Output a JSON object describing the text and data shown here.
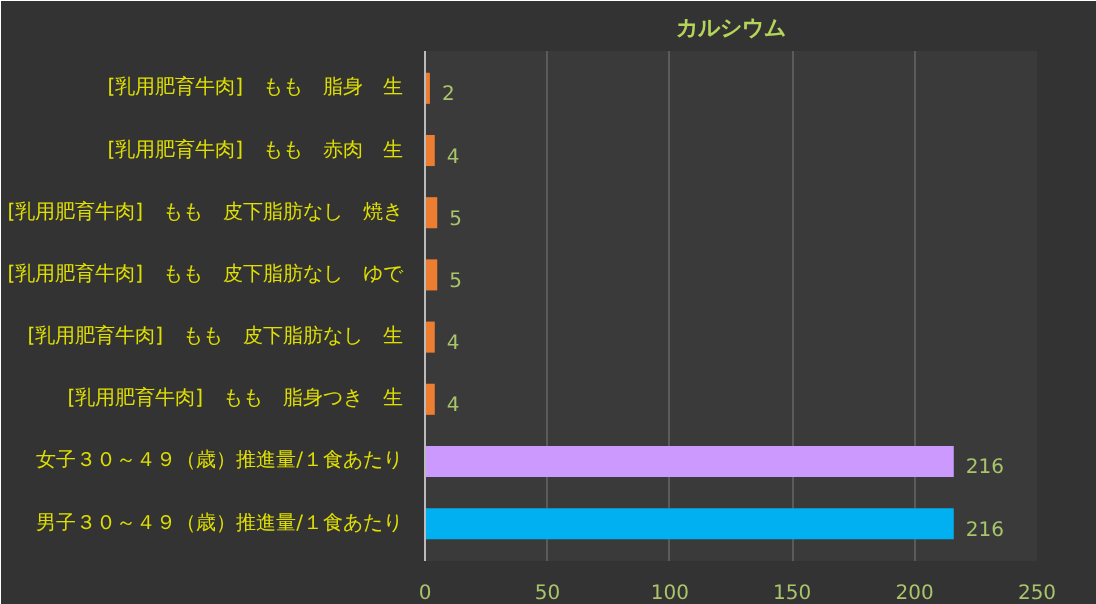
{
  "chart_data": {
    "type": "bar",
    "orientation": "horizontal",
    "title": "カルシウム",
    "categories": [
      "[乳用肥育牛肉]　もも　脂身　生",
      "[乳用肥育牛肉]　もも　赤肉　生",
      "[乳用肥育牛肉]　もも　皮下脂肪なし　焼き",
      "[乳用肥育牛肉]　もも　皮下脂肪なし　ゆで",
      "[乳用肥育牛肉]　もも　皮下脂肪なし　生",
      "[乳用肥育牛肉]　もも　脂身つき　生",
      "女子３０～４９（歳）推進量/１食あたり",
      "男子３０～４９（歳）推進量/１食あたり"
    ],
    "values": [
      2,
      4,
      5,
      5,
      4,
      4,
      216,
      216
    ],
    "colors": [
      "#ed7d31",
      "#ed7d31",
      "#ed7d31",
      "#ed7d31",
      "#ed7d31",
      "#ed7d31",
      "#cc99ff",
      "#00b0f0"
    ],
    "xlim": [
      0,
      250
    ],
    "xticks": [
      0,
      50,
      100,
      150,
      200,
      250
    ],
    "grid": "x",
    "data_labels": true
  }
}
